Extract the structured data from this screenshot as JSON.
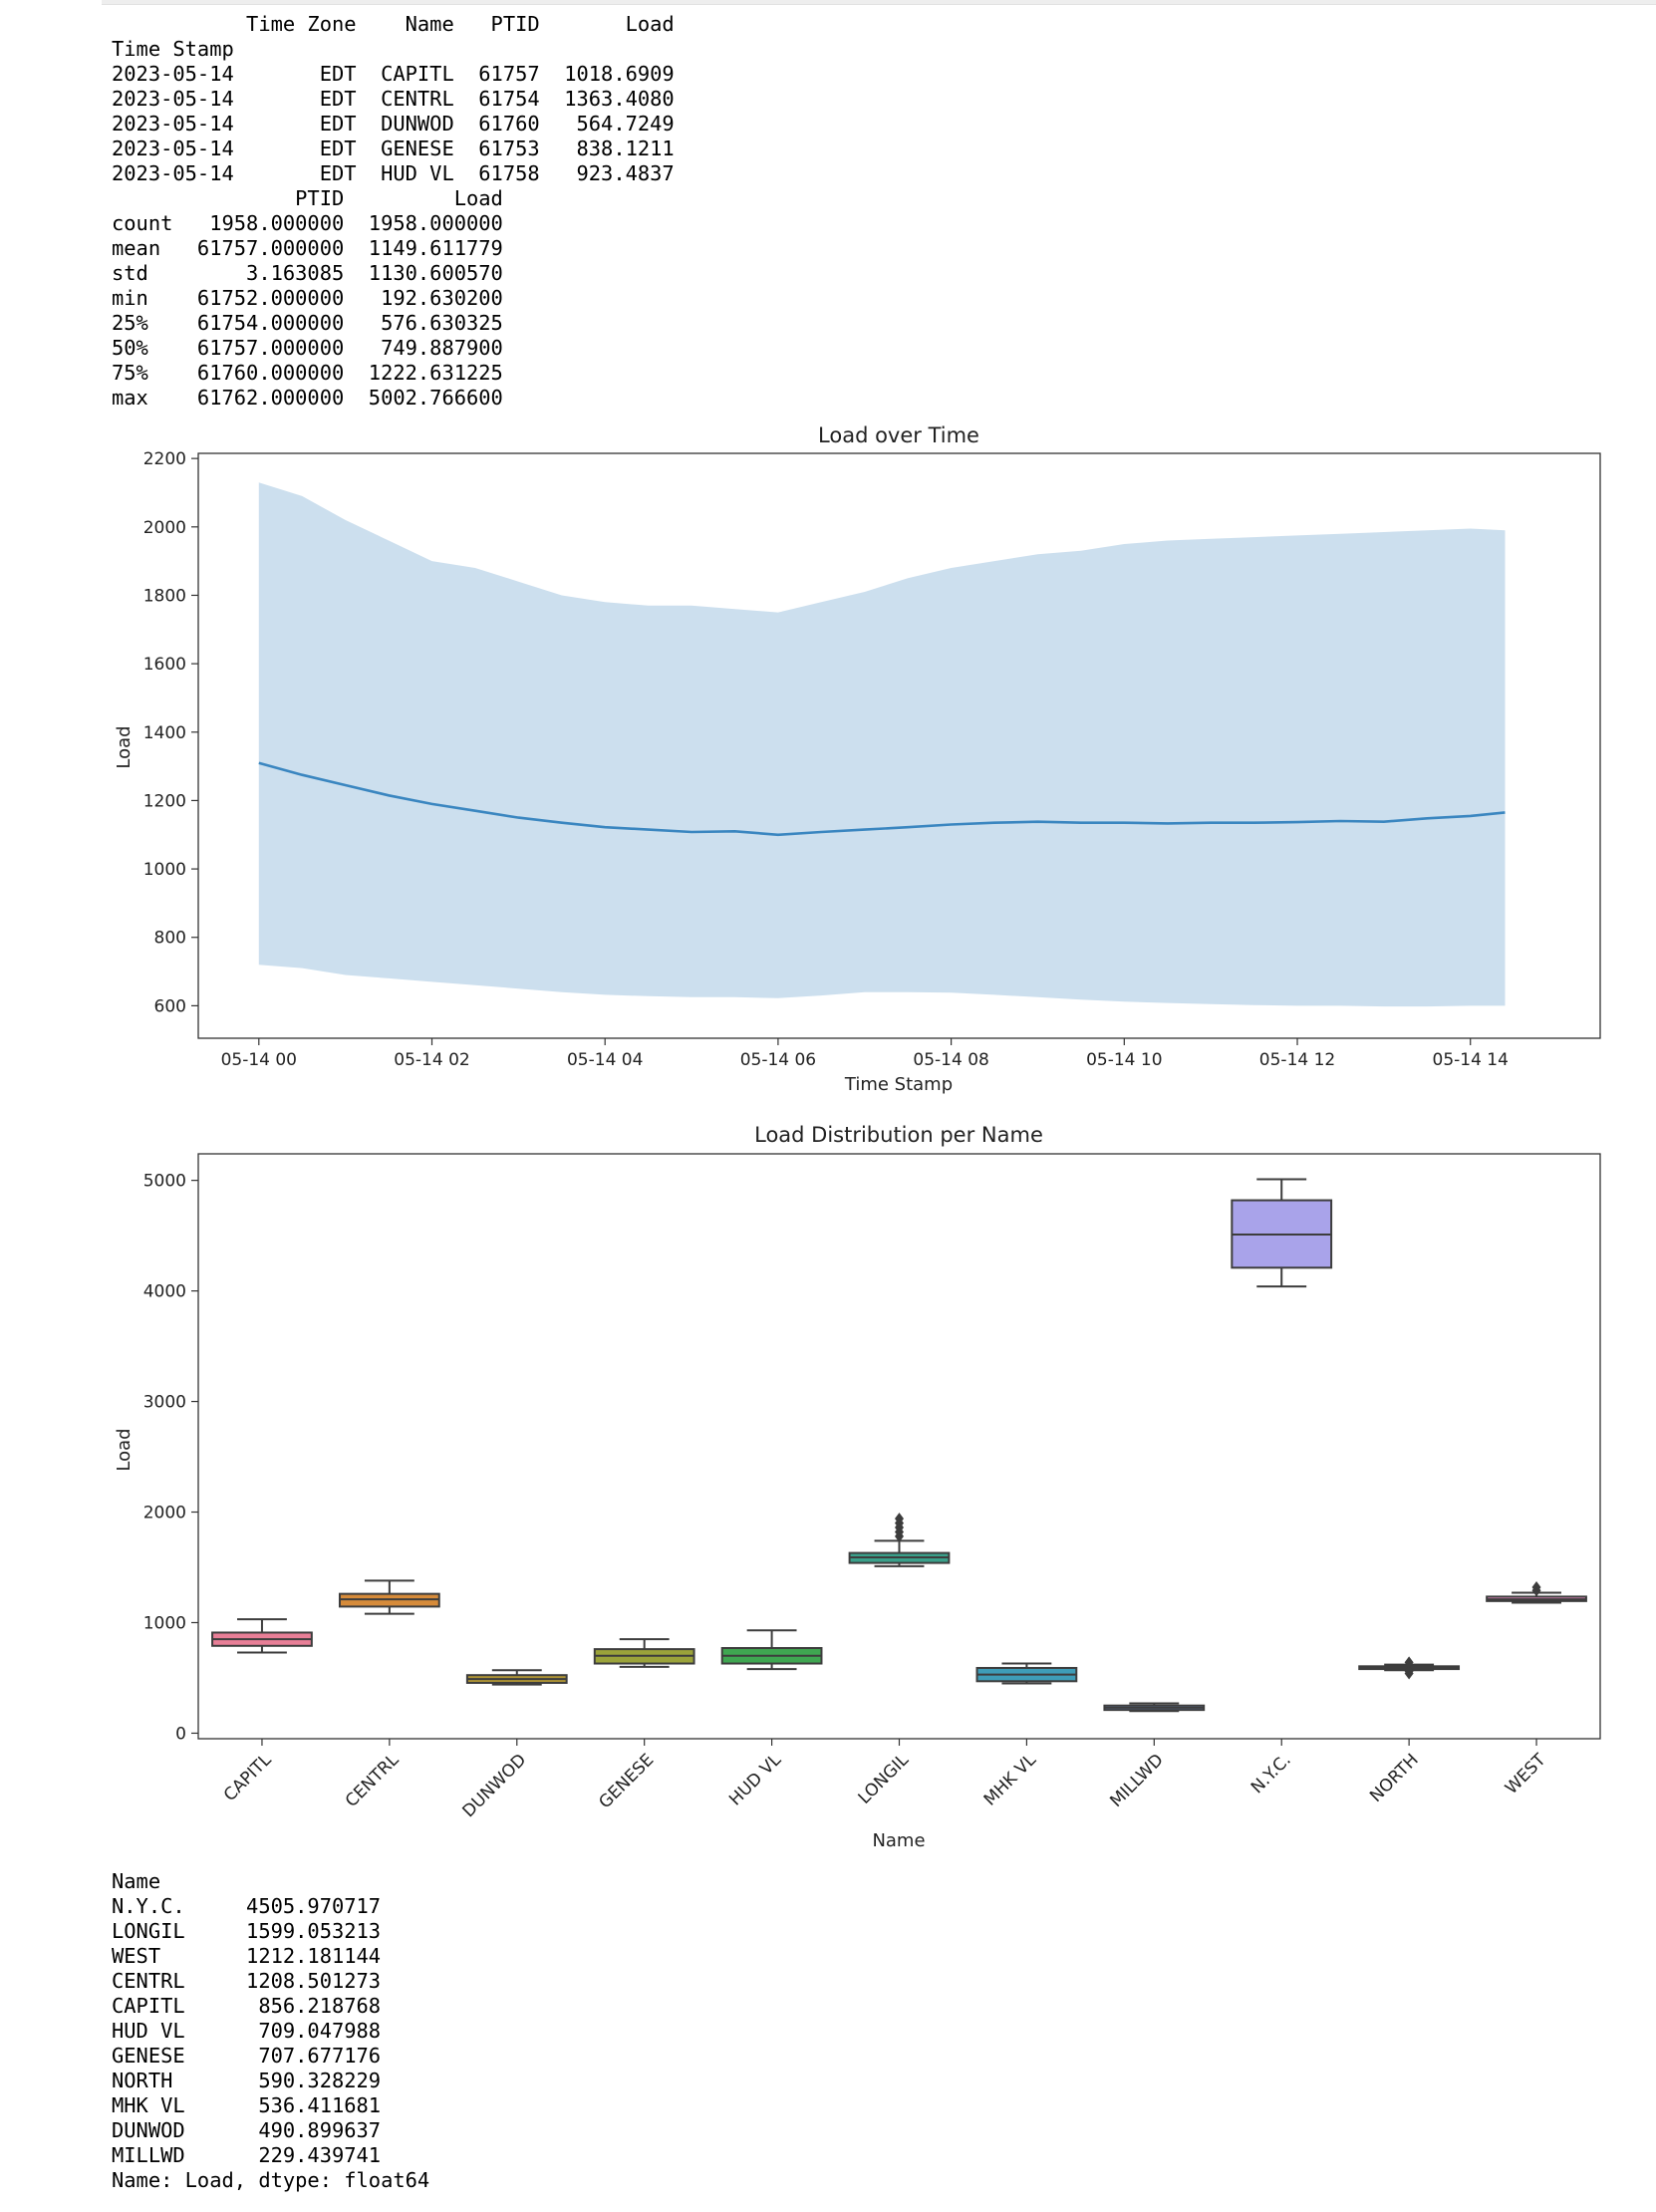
{
  "head_output": {
    "lines": [
      "           Time Zone    Name   PTID       Load",
      "Time Stamp",
      "2023-05-14       EDT  CAPITL  61757  1018.6909",
      "2023-05-14       EDT  CENTRL  61754  1363.4080",
      "2023-05-14       EDT  DUNWOD  61760   564.7249",
      "2023-05-14       EDT  GENESE  61753   838.1211",
      "2023-05-14       EDT  HUD VL  61758   923.4837",
      "               PTID         Load",
      "count   1958.000000  1958.000000",
      "mean   61757.000000  1149.611779",
      "std        3.163085  1130.600570",
      "min    61752.000000   192.630200",
      "25%    61754.000000   576.630325",
      "50%    61757.000000   749.887900",
      "75%    61760.000000  1222.631225",
      "max    61762.000000  5002.766600"
    ]
  },
  "mean_output": {
    "lines": [
      "Name",
      "N.Y.C.     4505.970717",
      "LONGIL     1599.053213",
      "WEST       1212.181144",
      "CENTRL     1208.501273",
      "CAPITL      856.218768",
      "HUD VL      709.047988",
      "GENESE      707.677176",
      "NORTH       590.328229",
      "MHK VL      536.411681",
      "DUNWOD      490.899637",
      "MILLWD      229.439741",
      "Name: Load, dtype: float64"
    ]
  },
  "chart_data": [
    {
      "type": "line",
      "title": "Load over Time",
      "xlabel": "Time Stamp",
      "ylabel": "Load",
      "xlim_hours": [
        -0.7,
        15.5
      ],
      "ylim": [
        505,
        2215
      ],
      "x_ticks": [
        {
          "hour": 0,
          "label": "05-14 00"
        },
        {
          "hour": 2,
          "label": "05-14 02"
        },
        {
          "hour": 4,
          "label": "05-14 04"
        },
        {
          "hour": 6,
          "label": "05-14 06"
        },
        {
          "hour": 8,
          "label": "05-14 08"
        },
        {
          "hour": 10,
          "label": "05-14 10"
        },
        {
          "hour": 12,
          "label": "05-14 12"
        },
        {
          "hour": 14,
          "label": "05-14 14"
        }
      ],
      "y_ticks": [
        600,
        800,
        1000,
        1200,
        1400,
        1600,
        1800,
        2000,
        2200
      ],
      "grid": false,
      "line_color": "#3a86c0",
      "band_color": "#c6dcec",
      "series": [
        {
          "x_hours": [
            0,
            0.5,
            1,
            1.5,
            2,
            2.5,
            3,
            3.5,
            4,
            4.5,
            5,
            5.5,
            6,
            6.5,
            7,
            7.5,
            8,
            8.5,
            9,
            9.5,
            10,
            10.5,
            11,
            11.5,
            12,
            12.5,
            13,
            13.5,
            14,
            14.4
          ],
          "mean": [
            1310,
            1275,
            1245,
            1215,
            1190,
            1170,
            1150,
            1135,
            1122,
            1115,
            1108,
            1110,
            1100,
            1108,
            1115,
            1122,
            1130,
            1135,
            1138,
            1135,
            1135,
            1133,
            1135,
            1135,
            1137,
            1140,
            1138,
            1148,
            1155,
            1165
          ],
          "upper": [
            2130,
            2090,
            2020,
            1960,
            1900,
            1880,
            1840,
            1800,
            1780,
            1770,
            1770,
            1760,
            1750,
            1780,
            1810,
            1850,
            1880,
            1900,
            1920,
            1930,
            1950,
            1960,
            1965,
            1970,
            1975,
            1980,
            1985,
            1990,
            1995,
            1990
          ],
          "lower": [
            720,
            710,
            690,
            680,
            670,
            660,
            650,
            640,
            632,
            628,
            625,
            625,
            622,
            630,
            640,
            640,
            638,
            632,
            625,
            618,
            612,
            608,
            605,
            602,
            600,
            600,
            598,
            598,
            600,
            600
          ]
        }
      ]
    },
    {
      "type": "box",
      "title": "Load Distribution per Name",
      "xlabel": "Name",
      "ylabel": "Load",
      "ylim": [
        -50,
        5240
      ],
      "y_ticks": [
        0,
        1000,
        2000,
        3000,
        4000,
        5000
      ],
      "grid": false,
      "categories": [
        "CAPITL",
        "CENTRL",
        "DUNWOD",
        "GENESE",
        "HUD VL",
        "LONGIL",
        "MHK VL",
        "MILLWD",
        "N.Y.C.",
        "NORTH",
        "WEST"
      ],
      "boxes": [
        {
          "name": "CAPITL",
          "whislo": 730,
          "q1": 790,
          "med": 850,
          "q3": 910,
          "whishi": 1030,
          "fliers": [],
          "color": "#e87f97"
        },
        {
          "name": "CENTRL",
          "whislo": 1080,
          "q1": 1145,
          "med": 1210,
          "q3": 1260,
          "whishi": 1380,
          "fliers": [],
          "color": "#d68b3a"
        },
        {
          "name": "DUNWOD",
          "whislo": 440,
          "q1": 455,
          "med": 490,
          "q3": 525,
          "whishi": 570,
          "fliers": [],
          "color": "#b09534"
        },
        {
          "name": "GENESE",
          "whislo": 600,
          "q1": 630,
          "med": 700,
          "q3": 760,
          "whishi": 850,
          "fliers": [],
          "color": "#9ba33a"
        },
        {
          "name": "HUD VL",
          "whislo": 580,
          "q1": 630,
          "med": 700,
          "q3": 770,
          "whishi": 930,
          "fliers": [],
          "color": "#3fa651"
        },
        {
          "name": "LONGIL",
          "whislo": 1510,
          "q1": 1540,
          "med": 1590,
          "q3": 1630,
          "whishi": 1740,
          "fliers": [
            1780,
            1820,
            1860,
            1900,
            1940
          ],
          "color": "#3aa08a"
        },
        {
          "name": "MHK VL",
          "whislo": 450,
          "q1": 470,
          "med": 530,
          "q3": 590,
          "whishi": 630,
          "fliers": [],
          "color": "#3e9db8"
        },
        {
          "name": "MILLWD",
          "whislo": 200,
          "q1": 210,
          "med": 230,
          "q3": 250,
          "whishi": 270,
          "fliers": [],
          "color": "#6f8fc8"
        },
        {
          "name": "N.Y.C.",
          "whislo": 4040,
          "q1": 4210,
          "med": 4510,
          "q3": 4820,
          "whishi": 5010,
          "fliers": [],
          "color": "#a9a3ea"
        },
        {
          "name": "NORTH",
          "whislo": 570,
          "q1": 580,
          "med": 590,
          "q3": 605,
          "whishi": 620,
          "fliers": [
            540,
            560,
            640
          ],
          "color": "#c98bd6"
        },
        {
          "name": "WEST",
          "whislo": 1180,
          "q1": 1195,
          "med": 1210,
          "q3": 1235,
          "whishi": 1270,
          "fliers": [
            1290,
            1320
          ],
          "color": "#e58ac0"
        }
      ]
    }
  ]
}
